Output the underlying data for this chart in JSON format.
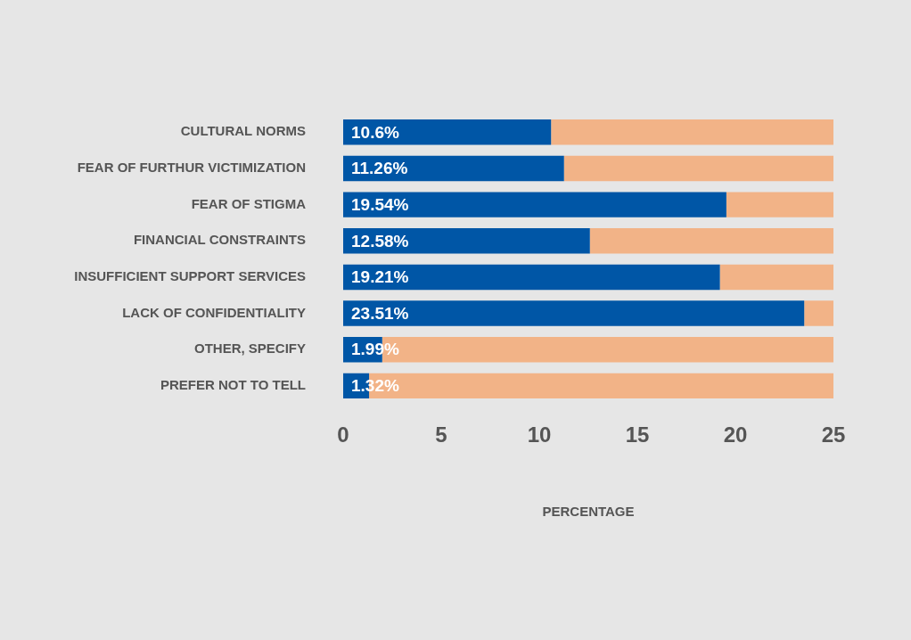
{
  "chart_data": {
    "type": "bar",
    "orientation": "horizontal",
    "stacked": true,
    "xlabel": "PERCENTAGE",
    "categories": [
      "CULTURAL NORMS",
      "FEAR OF FURTHUR VICTIMIZATION",
      "FEAR OF STIGMA",
      "FINANCIAL CONSTRAINTS",
      "INSUFFICIENT SUPPORT SERVICES",
      "LACK OF CONFIDENTIALITY",
      "OTHER, SPECIFY",
      "PREFER NOT TO TELL"
    ],
    "series": [
      {
        "color": "#0056a6",
        "values": [
          10.6,
          11.26,
          19.54,
          12.58,
          19.21,
          23.51,
          1.99,
          1.32
        ],
        "value_labels": [
          "10.6%",
          "11.26%",
          "19.54%",
          "12.58%",
          "19.21%",
          "23.51%",
          "1.99%",
          "1.32%"
        ]
      },
      {
        "color": "#f2b387",
        "values": [
          14.4,
          13.74,
          5.46,
          12.42,
          5.79,
          1.49,
          23.01,
          23.68
        ]
      }
    ],
    "xlim": [
      0,
      25
    ],
    "xticks": [
      0,
      5,
      10,
      15,
      20,
      25
    ],
    "grid": false,
    "legend": false
  }
}
